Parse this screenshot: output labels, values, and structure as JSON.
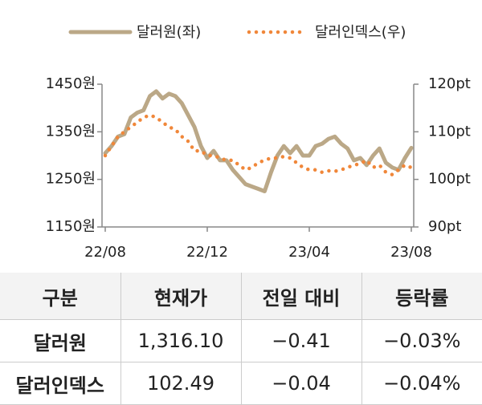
{
  "chart_data": {
    "type": "line",
    "categories": [
      "22/08",
      null,
      null,
      null,
      null,
      null,
      null,
      null,
      null,
      null,
      null,
      null,
      null,
      null,
      null,
      null,
      "22/12",
      null,
      null,
      null,
      null,
      null,
      null,
      null,
      null,
      null,
      null,
      null,
      null,
      null,
      null,
      null,
      "23/04",
      null,
      null,
      null,
      null,
      null,
      null,
      null,
      null,
      null,
      null,
      null,
      null,
      null,
      null,
      null,
      "23/08"
    ],
    "series": [
      {
        "name": "달러원(좌)",
        "color": "#bba887",
        "axis": "y",
        "values": [
          1305,
          1320,
          1340,
          1345,
          1380,
          1390,
          1395,
          1425,
          1435,
          1420,
          1430,
          1425,
          1410,
          1385,
          1360,
          1320,
          1295,
          1310,
          1290,
          1290,
          1270,
          1255,
          1240,
          1235,
          1230,
          1225,
          1265,
          1300,
          1320,
          1305,
          1320,
          1300,
          1300,
          1320,
          1325,
          1335,
          1340,
          1325,
          1315,
          1290,
          1295,
          1280,
          1300,
          1315,
          1285,
          1275,
          1270,
          1295,
          1316.1
        ]
      },
      {
        "name": "달러인덱스(우)",
        "color": "#f0873a",
        "axis": "y2",
        "values": [
          105,
          107,
          109,
          110,
          111,
          112,
          113,
          113.5,
          113,
          112,
          111,
          110.5,
          109,
          108,
          106,
          106,
          105,
          105,
          104.5,
          104,
          104,
          103,
          102,
          102.5,
          103.5,
          104,
          104.5,
          104.5,
          104.8,
          104.5,
          103.5,
          102.5,
          102,
          102,
          101.5,
          101.8,
          101.7,
          102,
          102.5,
          103,
          103.3,
          104,
          102.5,
          103,
          101.5,
          101,
          102,
          103,
          102.49
        ]
      }
    ],
    "ylim": [
      1150,
      1450
    ],
    "yticks": [
      {
        "value": 1150,
        "label": "1150원"
      },
      {
        "value": 1250,
        "label": "1250원"
      },
      {
        "value": 1350,
        "label": "1350원"
      },
      {
        "value": 1450,
        "label": "1450원"
      }
    ],
    "y2lim": [
      90,
      120
    ],
    "y2ticks": [
      {
        "value": 90,
        "label": "90pt"
      },
      {
        "value": 100,
        "label": "100pt"
      },
      {
        "value": 110,
        "label": "110pt"
      },
      {
        "value": 120,
        "label": "120pt"
      }
    ]
  },
  "table": {
    "header": [
      "구분",
      "현재가",
      "전일 대비",
      "등락률"
    ],
    "rows": [
      [
        "달러원",
        "1,316.10",
        "−0.41",
        "−0.03%"
      ],
      [
        "달러인덱스",
        "102.49",
        "−0.04",
        "−0.04%"
      ]
    ]
  }
}
